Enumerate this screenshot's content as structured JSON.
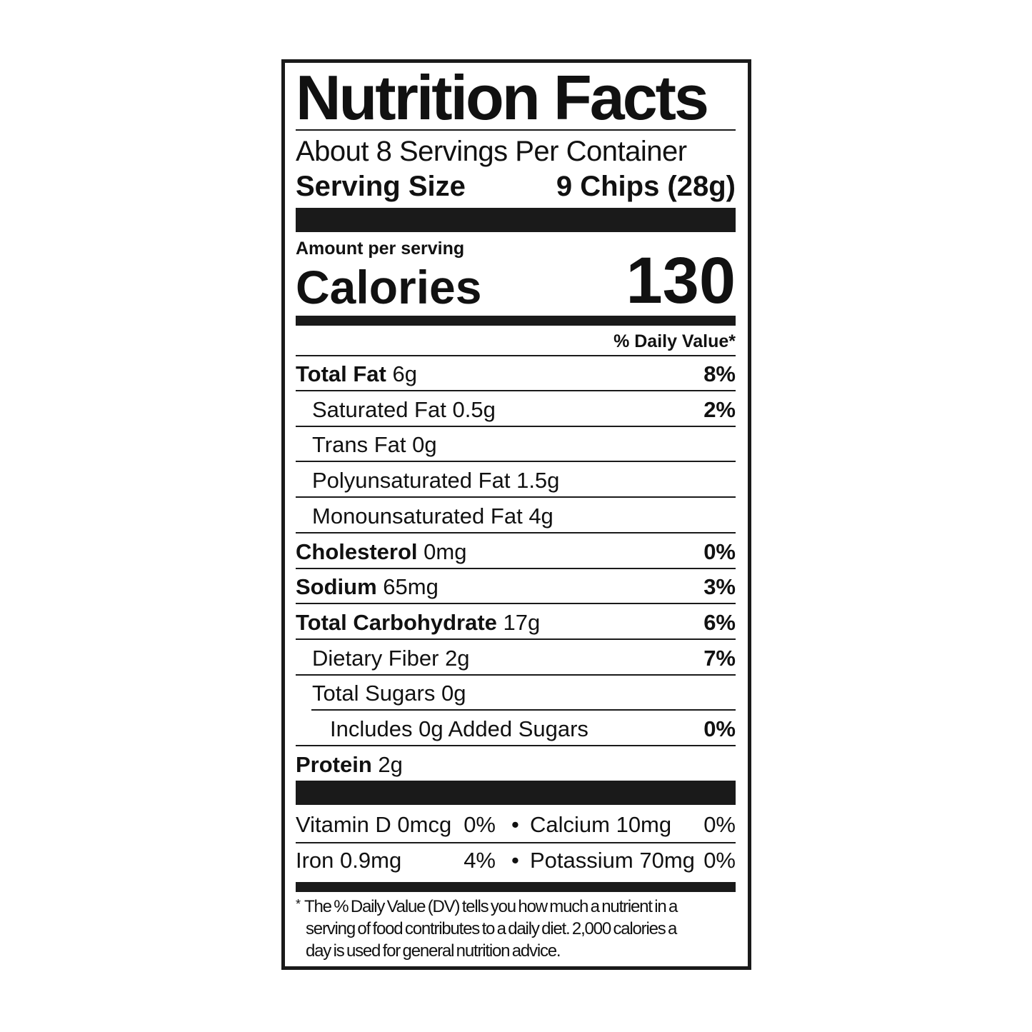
{
  "title": "Nutrition Facts",
  "servings_per_container": "About 8 Servings Per Container",
  "serving_size_label": "Serving Size",
  "serving_size_value": "9 Chips (28g)",
  "amount_per_serving": "Amount per serving",
  "calories_label": "Calories",
  "calories_value": "130",
  "daily_value_header": "% Daily Value*",
  "nutrients": [
    {
      "name": "Total Fat",
      "amount": "6g",
      "dv": "8%",
      "bold": true,
      "indent": 0
    },
    {
      "name": "Saturated Fat",
      "amount": "0.5g",
      "dv": "2%",
      "bold": false,
      "indent": 1
    },
    {
      "name": "Trans Fat",
      "amount": "0g",
      "dv": "",
      "bold": false,
      "indent": 1
    },
    {
      "name": "Polyunsaturated Fat",
      "amount": "1.5g",
      "dv": "",
      "bold": false,
      "indent": 1
    },
    {
      "name": "Monounsaturated Fat",
      "amount": "4g",
      "dv": "",
      "bold": false,
      "indent": 1
    },
    {
      "name": "Cholesterol",
      "amount": "0mg",
      "dv": "0%",
      "bold": true,
      "indent": 0
    },
    {
      "name": "Sodium",
      "amount": "65mg",
      "dv": "3%",
      "bold": true,
      "indent": 0
    },
    {
      "name": "Total Carbohydrate",
      "amount": "17g",
      "dv": "6%",
      "bold": true,
      "indent": 0
    },
    {
      "name": "Dietary Fiber",
      "amount": "2g",
      "dv": "7%",
      "bold": false,
      "indent": 1
    },
    {
      "name": "Total Sugars",
      "amount": "0g",
      "dv": "",
      "bold": false,
      "indent": 1
    },
    {
      "name": "Includes 0g Added Sugars",
      "amount": "",
      "dv": "0%",
      "bold": false,
      "indent": 2
    },
    {
      "name": "Protein",
      "amount": "2g",
      "dv": "",
      "bold": true,
      "indent": 0
    }
  ],
  "vitamins": [
    {
      "left_name": "Vitamin D 0mcg",
      "left_dv": "0%",
      "bullet": "•",
      "right_name": "Calcium 10mg",
      "right_dv": "0%"
    },
    {
      "left_name": "Iron 0.9mg",
      "left_dv": "4%",
      "bullet": "•",
      "right_name": "Potassium 70mg",
      "right_dv": "0%"
    }
  ],
  "footnote_mark": "*",
  "footnote": [
    "The % Daily Value (DV) tells you how much a nutrient in a",
    "serving of food contributes to a daily diet. 2,000 calories a",
    "day is used for general nutrition advice."
  ]
}
